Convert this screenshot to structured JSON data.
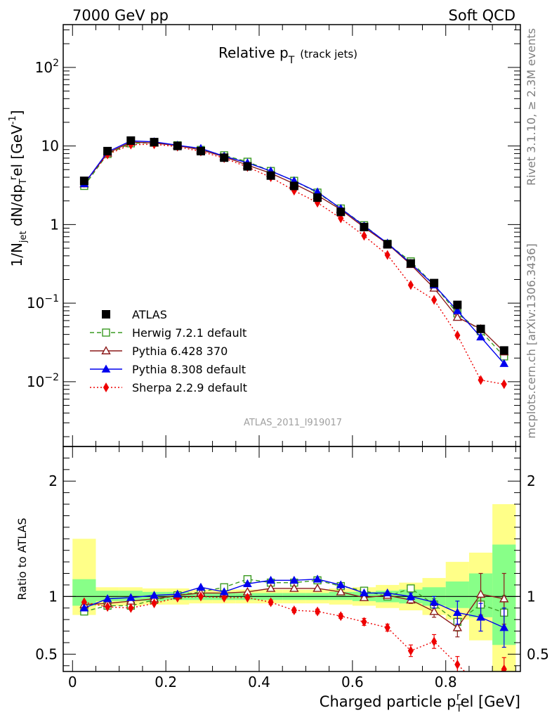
{
  "header": {
    "left": "7000 GeV pp",
    "right": "Soft QCD"
  },
  "side_labels": {
    "rivet": "Rivet 3.1.10, ≥ 2.3M events",
    "mcplots": "mcplots.cern.ch [arXiv:1306.3436]"
  },
  "colors": {
    "ATLAS": "#000000",
    "Herwig": "#3a9a22",
    "Pythia6": "#8b1a1a",
    "Pythia8": "#0000ee",
    "Sherpa": "#ee0000",
    "band_yellow": "#ffff88",
    "band_green": "#88ff88"
  },
  "chart_data": [
    {
      "type": "line",
      "panel": "main",
      "title": "Relative p_T (track jets)",
      "title_main": "Relative p",
      "title_sub": "T",
      "title_suffix": "(track jets)",
      "analysis_tag": "ATLAS_2011_I919017",
      "ylabel": "1/N_jet dN/dp_T^rel [GeV^-1]",
      "ylabel_parts": [
        "1/N",
        "jet",
        " dN/dp",
        "T",
        "r",
        "el [GeV",
        "-1",
        "]"
      ],
      "xlim": [
        -0.02,
        0.96
      ],
      "ylim": [
        0.0015,
        350
      ],
      "yscale": "log",
      "yticks": [
        {
          "v": 0.01,
          "label_base": "10",
          "label_exp": "−2"
        },
        {
          "v": 0.1,
          "label_base": "10",
          "label_exp": "−1"
        },
        {
          "v": 1,
          "label_base": "1",
          "label_exp": ""
        },
        {
          "v": 10,
          "label_base": "10",
          "label_exp": ""
        },
        {
          "v": 100,
          "label_base": "10",
          "label_exp": "2"
        }
      ],
      "legend_position": "lower-left",
      "x": [
        0.025,
        0.075,
        0.125,
        0.175,
        0.225,
        0.275,
        0.325,
        0.375,
        0.425,
        0.475,
        0.525,
        0.575,
        0.625,
        0.675,
        0.725,
        0.775,
        0.825,
        0.875,
        0.925
      ],
      "series": [
        {
          "name": "ATLAS",
          "key": "ATLAS",
          "marker": "square-filled",
          "line": "none",
          "values": [
            3.6,
            8.6,
            11.7,
            11.2,
            10.0,
            8.6,
            7.1,
            5.5,
            4.2,
            3.1,
            2.2,
            1.45,
            0.93,
            0.56,
            0.32,
            0.18,
            0.095,
            0.047,
            0.025
          ]
        },
        {
          "name": "Herwig 7.2.1 default",
          "key": "Herwig",
          "marker": "square-open",
          "line": "dashed",
          "values": [
            3.1,
            7.9,
            10.8,
            11.0,
            10.2,
            8.9,
            7.6,
            6.3,
            4.8,
            3.6,
            2.55,
            1.6,
            0.98,
            0.57,
            0.34,
            0.17,
            0.074,
            0.044,
            0.021
          ]
        },
        {
          "name": "Pythia 6.428 370",
          "key": "Pythia6",
          "marker": "triangle-open",
          "line": "solid",
          "values": [
            3.3,
            8.1,
            11.2,
            10.9,
            10.1,
            8.9,
            7.3,
            5.7,
            4.5,
            3.3,
            2.35,
            1.55,
            0.92,
            0.57,
            0.31,
            0.155,
            0.066,
            0.047,
            0.024
          ]
        },
        {
          "name": "Pythia 8.308 default",
          "key": "Pythia8",
          "marker": "triangle-filled",
          "line": "solid",
          "values": [
            3.3,
            8.4,
            11.6,
            11.3,
            10.2,
            9.3,
            7.4,
            6.1,
            4.8,
            3.6,
            2.6,
            1.6,
            0.96,
            0.58,
            0.32,
            0.17,
            0.08,
            0.037,
            0.017
          ]
        },
        {
          "name": "Sherpa 2.2.9 default",
          "key": "Sherpa",
          "marker": "diamond-filled",
          "line": "dotted",
          "values": [
            3.4,
            7.8,
            10.4,
            10.5,
            9.8,
            8.5,
            7.0,
            5.4,
            4.0,
            2.7,
            1.9,
            1.2,
            0.72,
            0.41,
            0.17,
            0.11,
            0.039,
            0.0105,
            0.0093
          ]
        }
      ]
    },
    {
      "type": "line",
      "panel": "ratio",
      "xlabel": "Charged particle p_T^rel [GeV]",
      "xlabel_main": "Charged particle p",
      "xlabel_sub": "T",
      "xlabel_sup": "r",
      "xlabel_suffix": "el [GeV]",
      "ylabel": "Ratio to ATLAS",
      "xlim": [
        -0.02,
        0.96
      ],
      "ylim": [
        0.35,
        2.3
      ],
      "xticks": [
        0,
        0.2,
        0.4,
        0.6,
        0.8
      ],
      "xtick_labels": [
        "0",
        "0.2",
        "0.4",
        "0.6",
        "0.8"
      ],
      "yticks": [
        0.5,
        1,
        2
      ],
      "ytick_labels": [
        "0.5",
        "1",
        "2"
      ],
      "x": [
        0.025,
        0.075,
        0.125,
        0.175,
        0.225,
        0.275,
        0.325,
        0.375,
        0.425,
        0.475,
        0.525,
        0.575,
        0.625,
        0.675,
        0.725,
        0.775,
        0.825,
        0.875,
        0.925
      ],
      "bins": [
        [
          0.0,
          0.05
        ],
        [
          0.05,
          0.1
        ],
        [
          0.1,
          0.15
        ],
        [
          0.15,
          0.2
        ],
        [
          0.2,
          0.25
        ],
        [
          0.25,
          0.3
        ],
        [
          0.3,
          0.35
        ],
        [
          0.35,
          0.4
        ],
        [
          0.4,
          0.45
        ],
        [
          0.45,
          0.5
        ],
        [
          0.5,
          0.55
        ],
        [
          0.55,
          0.6
        ],
        [
          0.6,
          0.65
        ],
        [
          0.65,
          0.7
        ],
        [
          0.7,
          0.75
        ],
        [
          0.75,
          0.8
        ],
        [
          0.8,
          0.85
        ],
        [
          0.85,
          0.9
        ],
        [
          0.9,
          0.95
        ]
      ],
      "band_yellow": [
        [
          0.84,
          1.5
        ],
        [
          0.92,
          1.08
        ],
        [
          0.92,
          1.08
        ],
        [
          0.93,
          1.07
        ],
        [
          0.93,
          1.07
        ],
        [
          0.94,
          1.06
        ],
        [
          0.94,
          1.06
        ],
        [
          0.94,
          1.06
        ],
        [
          0.94,
          1.06
        ],
        [
          0.94,
          1.06
        ],
        [
          0.94,
          1.06
        ],
        [
          0.93,
          1.07
        ],
        [
          0.92,
          1.08
        ],
        [
          0.9,
          1.1
        ],
        [
          0.88,
          1.12
        ],
        [
          0.84,
          1.16
        ],
        [
          0.8,
          1.3
        ],
        [
          0.62,
          1.38
        ],
        [
          0.35,
          1.8
        ]
      ],
      "band_green": [
        [
          0.92,
          1.15
        ],
        [
          0.96,
          1.05
        ],
        [
          0.96,
          1.05
        ],
        [
          0.96,
          1.04
        ],
        [
          0.97,
          1.04
        ],
        [
          0.97,
          1.03
        ],
        [
          0.97,
          1.03
        ],
        [
          0.97,
          1.03
        ],
        [
          0.97,
          1.03
        ],
        [
          0.97,
          1.03
        ],
        [
          0.97,
          1.03
        ],
        [
          0.97,
          1.04
        ],
        [
          0.96,
          1.04
        ],
        [
          0.95,
          1.05
        ],
        [
          0.94,
          1.06
        ],
        [
          0.92,
          1.08
        ],
        [
          0.9,
          1.13
        ],
        [
          0.82,
          1.2
        ],
        [
          0.58,
          1.45
        ]
      ],
      "series": [
        {
          "key": "Herwig",
          "marker": "square-open",
          "line": "dashed",
          "values": [
            0.87,
            0.92,
            0.92,
            0.97,
            1.01,
            1.04,
            1.08,
            1.15,
            1.12,
            1.12,
            1.14,
            1.09,
            1.05,
            1.0,
            1.07,
            0.93,
            0.78,
            0.93,
            0.86
          ],
          "errors": [
            0,
            0,
            0,
            0,
            0,
            0,
            0,
            0,
            0,
            0,
            0,
            0,
            0,
            0,
            0.03,
            0.05,
            0.08,
            0.1,
            0.15
          ]
        },
        {
          "key": "Pythia6",
          "marker": "triangle-open",
          "line": "solid",
          "values": [
            0.93,
            0.94,
            0.96,
            0.98,
            1.01,
            1.03,
            1.03,
            1.04,
            1.07,
            1.07,
            1.07,
            1.04,
            0.99,
            1.01,
            0.97,
            0.87,
            0.73,
            1.02,
            0.98
          ],
          "errors": [
            0,
            0,
            0,
            0,
            0,
            0,
            0,
            0,
            0,
            0,
            0,
            0,
            0,
            0,
            0.03,
            0.05,
            0.08,
            0.18,
            0.22
          ]
        },
        {
          "key": "Pythia8",
          "marker": "triangle-filled",
          "line": "solid",
          "values": [
            0.9,
            0.98,
            0.99,
            1.01,
            1.02,
            1.08,
            1.04,
            1.11,
            1.14,
            1.14,
            1.15,
            1.1,
            1.03,
            1.03,
            1.0,
            0.95,
            0.86,
            0.82,
            0.73
          ],
          "errors": [
            0,
            0,
            0,
            0,
            0,
            0,
            0,
            0,
            0,
            0,
            0,
            0,
            0,
            0,
            0.03,
            0.05,
            0.1,
            0.12,
            0.17
          ]
        },
        {
          "key": "Sherpa",
          "marker": "diamond-filled",
          "line": "dotted",
          "values": [
            0.95,
            0.91,
            0.9,
            0.94,
            0.99,
            1.0,
            0.99,
            0.99,
            0.95,
            0.88,
            0.87,
            0.83,
            0.78,
            0.73,
            0.53,
            0.61,
            0.41,
            0.22,
            0.37
          ],
          "errors": [
            0,
            0,
            0,
            0,
            0,
            0,
            0,
            0,
            0.02,
            0.02,
            0.02,
            0.02,
            0.03,
            0.03,
            0.05,
            0.06,
            0.07,
            0.08,
            0.1
          ]
        }
      ]
    }
  ]
}
